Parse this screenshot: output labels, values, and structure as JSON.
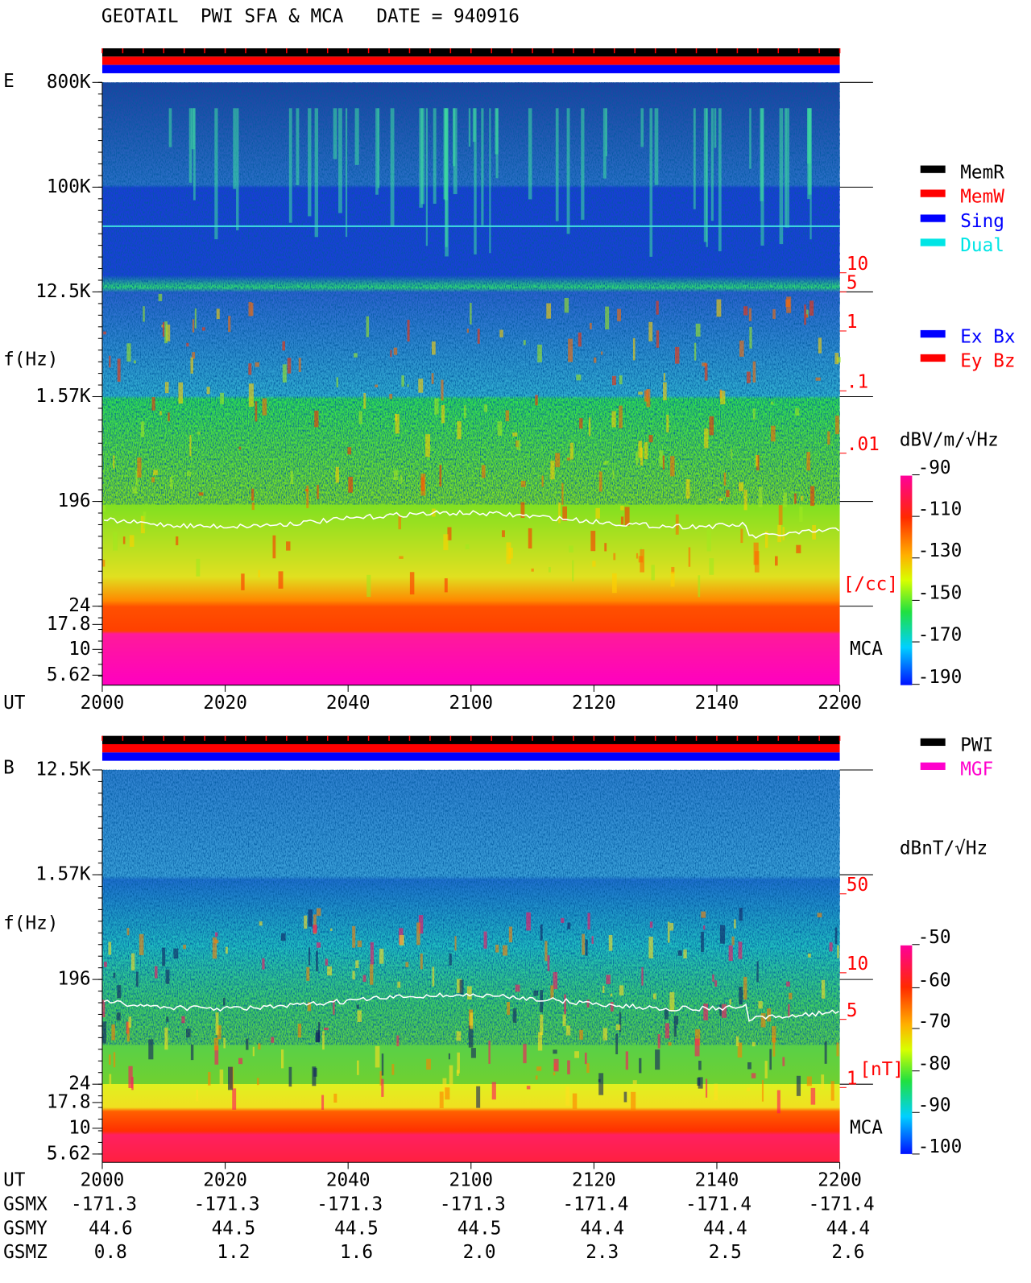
{
  "title": "GEOTAIL  PWI SFA & MCA   DATE = 940916",
  "panels": [
    {
      "label": "E",
      "y_axis_label": "f(Hz)",
      "y_ticks": [
        "800K",
        "100K",
        "12.5K",
        "1.57K",
        "196",
        "24",
        "17.8",
        "10",
        "5.62"
      ],
      "x_axis_label": "UT",
      "x_ticks": [
        "2000",
        "2020",
        "2040",
        "2100",
        "2120",
        "2140",
        "2200"
      ],
      "status_legend": [
        {
          "name": "MemR",
          "color": "#000000"
        },
        {
          "name": "MemW",
          "color": "#ff0000"
        },
        {
          "name": "Sing",
          "color": "#0000ff"
        },
        {
          "name": "Dual",
          "color": "#00e5e5"
        }
      ],
      "component_legend": [
        {
          "name": "Ex Bx",
          "color": "#0000ff"
        },
        {
          "name": "Ey Bz",
          "color": "#ff0000"
        }
      ],
      "side_scale": {
        "ticks": [
          "10",
          "5",
          "1",
          ".1",
          ".01"
        ],
        "unit": "[/cc]",
        "color": "#ff0000"
      },
      "mca_label": "MCA",
      "colorbar": {
        "unit": "dBV/m/√Hz",
        "ticks": [
          "-90",
          "-110",
          "-130",
          "-150",
          "-170",
          "-190"
        ]
      }
    },
    {
      "label": "B",
      "y_axis_label": "f(Hz)",
      "y_ticks": [
        "12.5K",
        "1.57K",
        "196",
        "24",
        "17.8",
        "10",
        "5.62"
      ],
      "x_axis_label": "UT",
      "x_ticks": [
        "2000",
        "2020",
        "2040",
        "2100",
        "2120",
        "2140",
        "2200"
      ],
      "status_legend": [
        {
          "name": "PWI",
          "color": "#000000"
        },
        {
          "name": "MGF",
          "color": "#ff00cc"
        }
      ],
      "side_scale": {
        "ticks": [
          "50",
          "10",
          "5",
          "1"
        ],
        "unit": "[nT]",
        "color": "#ff0000"
      },
      "mca_label": "MCA",
      "colorbar": {
        "unit": "dBnT/√Hz",
        "ticks": [
          "-50",
          "-60",
          "-70",
          "-80",
          "-90",
          "-100"
        ]
      }
    }
  ],
  "orbit": [
    {
      "label": "GSMX",
      "values": [
        "-171.3",
        "-171.3",
        "-171.3",
        "-171.3",
        "-171.4",
        "-171.4",
        "-171.4"
      ]
    },
    {
      "label": "GSMY",
      "values": [
        "44.6",
        "44.5",
        "44.5",
        "44.5",
        "44.4",
        "44.4",
        "44.4"
      ]
    },
    {
      "label": "GSMZ",
      "values": [
        "0.8",
        "1.2",
        "1.6",
        "2.0",
        "2.3",
        "2.5",
        "2.6"
      ]
    }
  ]
}
